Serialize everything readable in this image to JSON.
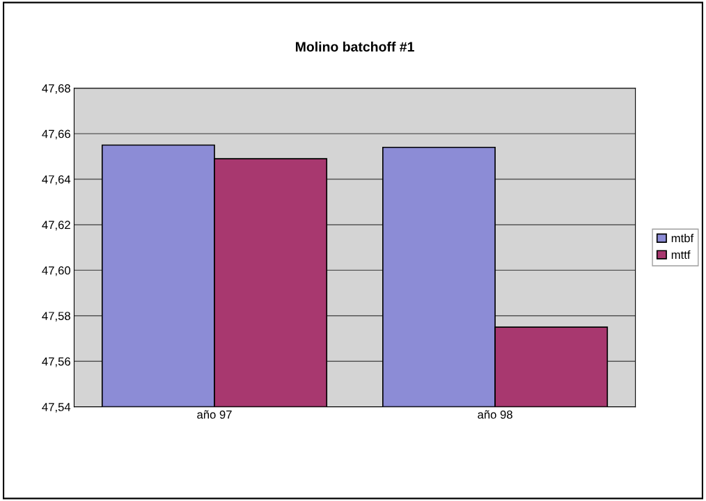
{
  "chart_data": {
    "type": "bar",
    "title": "Molino batchoff #1",
    "categories": [
      "año 97",
      "año 98"
    ],
    "series": [
      {
        "name": "mtbf",
        "color": "#8c8cd6",
        "values": [
          47.655,
          47.654
        ]
      },
      {
        "name": "mttf",
        "color": "#a8386f",
        "values": [
          47.649,
          47.575
        ]
      }
    ],
    "ylim": [
      47.54,
      47.68
    ],
    "yticks": [
      {
        "value": 47.54,
        "label": "47,54"
      },
      {
        "value": 47.56,
        "label": "47,56"
      },
      {
        "value": 47.58,
        "label": "47,58"
      },
      {
        "value": 47.6,
        "label": "47,60"
      },
      {
        "value": 47.62,
        "label": "47,62"
      },
      {
        "value": 47.64,
        "label": "47,64"
      },
      {
        "value": 47.66,
        "label": "47,66"
      },
      {
        "value": 47.68,
        "label": "47,68"
      }
    ],
    "grid": "y",
    "legend": "right"
  }
}
